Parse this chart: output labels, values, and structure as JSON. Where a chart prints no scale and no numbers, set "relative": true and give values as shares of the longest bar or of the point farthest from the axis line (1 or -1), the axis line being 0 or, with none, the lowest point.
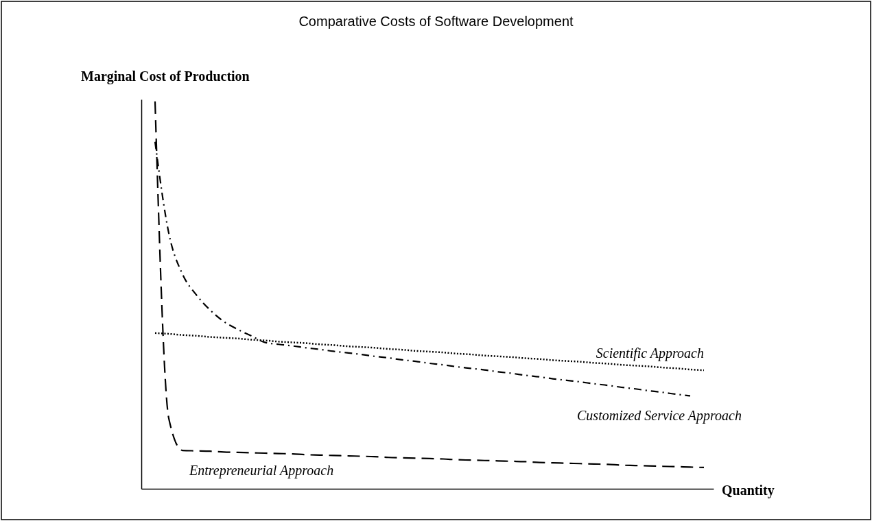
{
  "chart_data": {
    "type": "line",
    "title": "Comparative Costs of Software Development",
    "ylabel": "Marginal Cost of Production",
    "xlabel": "Quantity",
    "relative": true,
    "marker": "none",
    "categories": [
      null,
      null,
      null,
      null,
      null,
      null,
      null,
      null,
      null,
      null,
      null,
      null,
      null,
      null,
      null,
      null,
      null,
      null,
      null,
      null,
      null,
      null,
      null,
      null,
      null,
      null,
      null,
      null,
      null,
      null,
      null,
      null,
      null,
      null,
      null,
      null,
      null,
      null,
      null,
      null,
      null
    ],
    "series": [
      {
        "name": "Scientific Approach",
        "color": "#000000",
        "line_style": "dotted",
        "values": [
          0.402,
          0.4,
          0.397,
          0.395,
          0.392,
          0.39,
          0.388,
          0.385,
          0.383,
          0.38,
          0.378,
          0.376,
          0.373,
          0.371,
          0.368,
          0.366,
          0.364,
          0.361,
          0.359,
          0.356,
          0.354,
          0.352,
          0.349,
          0.347,
          0.344,
          0.342,
          0.34,
          0.337,
          0.335,
          0.332,
          0.33,
          0.328,
          0.325,
          0.323,
          0.32,
          0.318,
          0.316,
          0.313,
          0.311,
          0.308,
          0.306
        ]
      },
      {
        "name": "Customized Service Approach",
        "color": "#000000",
        "line_style": "dashed",
        "values": [
          0.896,
          0.66,
          0.554,
          0.501,
          0.462,
          0.432,
          0.412,
          0.395,
          0.378,
          0.373,
          0.369,
          0.364,
          0.36,
          0.355,
          0.351,
          0.347,
          0.342,
          0.338,
          0.333,
          0.329,
          0.324,
          0.32,
          0.315,
          0.311,
          0.307,
          0.302,
          0.298,
          0.293,
          0.289,
          0.284,
          0.28,
          0.276,
          0.271,
          0.267,
          0.262,
          0.258,
          0.253,
          0.249,
          0.244,
          0.24,
          null
        ]
      },
      {
        "name": "Entrepreneurial Approach",
        "color": "#000000",
        "line_style": "dashed",
        "values": [
          1.0,
          0.182,
          0.099,
          0.098,
          0.097,
          0.095,
          0.094,
          0.093,
          0.092,
          0.091,
          0.09,
          0.088,
          0.087,
          0.086,
          0.085,
          0.084,
          0.083,
          0.081,
          0.08,
          0.079,
          0.078,
          0.077,
          0.075,
          0.074,
          0.073,
          0.072,
          0.071,
          0.07,
          0.068,
          0.067,
          0.066,
          0.065,
          0.064,
          0.063,
          0.061,
          0.06,
          0.059,
          0.058,
          0.057,
          0.056,
          0.055
        ]
      }
    ]
  }
}
